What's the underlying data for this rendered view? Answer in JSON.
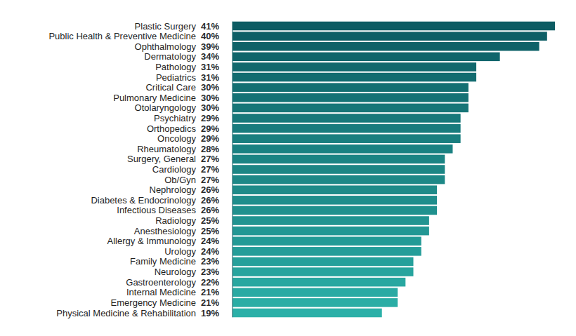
{
  "chart_data": {
    "type": "bar",
    "orientation": "horizontal",
    "categories": [
      "Plastic Surgery",
      "Public Health & Preventive Medicine",
      "Ophthalmology",
      "Dermatology",
      "Pathology",
      "Pediatrics",
      "Critical Care",
      "Pulmonary Medicine",
      "Otolaryngology",
      "Psychiatry",
      "Orthopedics",
      "Oncology",
      "Rheumatology",
      "Surgery, General",
      "Cardiology",
      "Ob/Gyn",
      "Nephrology",
      "Diabetes & Endocrinology",
      "Infectious Diseases",
      "Radiology",
      "Anesthesiology",
      "Allergy & Immunology",
      "Urology",
      "Family Medicine",
      "Neurology",
      "Gastroenterology",
      "Internal Medicine",
      "Emergency Medicine",
      "Physical Medicine & Rehabilitation"
    ],
    "values": [
      41,
      40,
      39,
      34,
      31,
      31,
      30,
      30,
      30,
      29,
      29,
      29,
      28,
      27,
      27,
      27,
      26,
      26,
      26,
      25,
      25,
      24,
      24,
      23,
      23,
      22,
      21,
      21,
      19
    ],
    "value_labels": [
      "41%",
      "40%",
      "39%",
      "34%",
      "31%",
      "31%",
      "30%",
      "30%",
      "30%",
      "29%",
      "29%",
      "29%",
      "28%",
      "27%",
      "27%",
      "27%",
      "26%",
      "26%",
      "26%",
      "25%",
      "25%",
      "24%",
      "24%",
      "23%",
      "23%",
      "22%",
      "21%",
      "21%",
      "19%"
    ],
    "colors": [
      "#0d5c63",
      "#0e5f66",
      "#0f6268",
      "#10656b",
      "#11686d",
      "#136c70",
      "#146f72",
      "#157275",
      "#167577",
      "#17787a",
      "#187b7d",
      "#197e7f",
      "#1a8182",
      "#1b8484",
      "#1c8685",
      "#1d8887",
      "#1e8b89",
      "#1f8e8c",
      "#20918e",
      "#219491",
      "#229794",
      "#239a96",
      "#249d99",
      "#25a09b",
      "#27a49e",
      "#28a7a0",
      "#29aaa3",
      "#2aada5",
      "#2bb0a8"
    ],
    "xlim": [
      0,
      41
    ],
    "data_labels": true,
    "tick_labels": false,
    "grid": false
  }
}
